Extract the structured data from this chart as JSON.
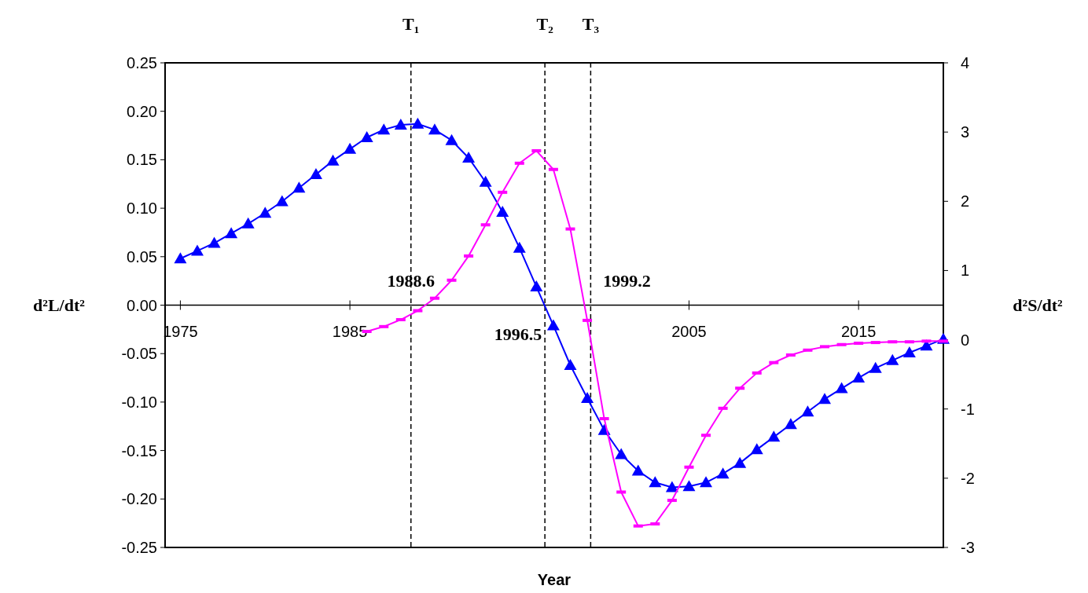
{
  "chart_data": {
    "type": "line",
    "xlabel": "Year",
    "ylabel": "d²L/dt²",
    "y2label": "d²S/dt²",
    "xlim": [
      1974.1,
      2020
    ],
    "xticks": [
      1975,
      1985,
      2005,
      2015
    ],
    "ylim": [
      -0.25,
      0.25
    ],
    "yticks": [
      {
        "value": -0.25,
        "label": "-0.25"
      },
      {
        "value": -0.2,
        "label": "-0.20"
      },
      {
        "value": -0.15,
        "label": "-0.15"
      },
      {
        "value": -0.1,
        "label": "-0.10"
      },
      {
        "value": -0.05,
        "label": "-0.05"
      },
      {
        "value": 0,
        "label": "0.00"
      },
      {
        "value": 0.05,
        "label": "0.05"
      },
      {
        "value": 0.1,
        "label": "0.10"
      },
      {
        "value": 0.15,
        "label": "0.15"
      },
      {
        "value": 0.2,
        "label": "0.20"
      },
      {
        "value": 0.25,
        "label": "0.25"
      }
    ],
    "y2lim": [
      -3,
      4
    ],
    "y2ticks": [
      -3,
      -2,
      -1,
      0,
      1,
      2,
      3,
      4
    ],
    "grid": false,
    "series": [
      {
        "color": "#0000ff",
        "marker": "triangle",
        "x": [
          1975,
          1976,
          1977,
          1978,
          1979,
          1980,
          1981,
          1982,
          1983,
          1984,
          1985,
          1986,
          1987,
          1988,
          1989,
          1990,
          1991,
          1992,
          1993,
          1994,
          1995,
          1996,
          1997,
          1998,
          1999,
          2000,
          2001,
          2002,
          2003,
          2004,
          2005,
          2006,
          2007,
          2008,
          2009,
          2010,
          2011,
          2012,
          2013,
          2014,
          2015,
          2016,
          2017,
          2018,
          2019,
          2020
        ],
        "values": [
          0.048,
          0.056,
          0.064,
          0.074,
          0.084,
          0.095,
          0.107,
          0.121,
          0.135,
          0.149,
          0.161,
          0.173,
          0.181,
          0.186,
          0.187,
          0.181,
          0.17,
          0.152,
          0.127,
          0.096,
          0.059,
          0.019,
          -0.021,
          -0.062,
          -0.096,
          -0.129,
          -0.154,
          -0.171,
          -0.183,
          -0.188,
          -0.187,
          -0.183,
          -0.174,
          -0.163,
          -0.149,
          -0.136,
          -0.123,
          -0.11,
          -0.097,
          -0.086,
          -0.075,
          -0.065,
          -0.057,
          -0.049,
          -0.042,
          -0.035
        ]
      },
      {
        "color": "#ff00ff",
        "marker": "square",
        "axis": "y2",
        "x": [
          1986,
          1987,
          1988,
          1989,
          1990,
          1991,
          1992,
          1993,
          1994,
          1995,
          1996,
          1997,
          1998,
          1999,
          2000,
          2001,
          2002,
          2003,
          2004,
          2005,
          2006,
          2007,
          2008,
          2009,
          2010,
          2011,
          2012,
          2013,
          2014,
          2015,
          2016,
          2017,
          2018,
          2019,
          2020
        ],
        "values": [
          0.12,
          0.19,
          0.29,
          0.42,
          0.6,
          0.86,
          1.21,
          1.66,
          2.13,
          2.55,
          2.73,
          2.46,
          1.6,
          0.28,
          -1.14,
          -2.2,
          -2.69,
          -2.66,
          -2.32,
          -1.84,
          -1.38,
          -0.99,
          -0.7,
          -0.48,
          -0.33,
          -0.22,
          -0.15,
          -0.1,
          -0.07,
          -0.05,
          -0.04,
          -0.03,
          -0.03,
          -0.02,
          -0.02
        ]
      }
    ],
    "ref_lines": [
      {
        "axis": "x",
        "value": 1988.6,
        "label": "T₁",
        "line_style": "dashed",
        "color": "#000000"
      },
      {
        "axis": "x",
        "value": 1996.5,
        "label": "T₂",
        "line_style": "dashed",
        "color": "#000000"
      },
      {
        "axis": "x",
        "value": 1999.2,
        "label": "T₃",
        "line_style": "dashed",
        "color": "#000000"
      }
    ],
    "annotations": [
      {
        "text": "1988.6",
        "x": 1988.6,
        "y": 0.025
      },
      {
        "text": "1996.5",
        "x": 1996.5,
        "y": -0.03
      },
      {
        "text": "1999.2",
        "x": 1999.2,
        "y": 0.025
      }
    ]
  }
}
